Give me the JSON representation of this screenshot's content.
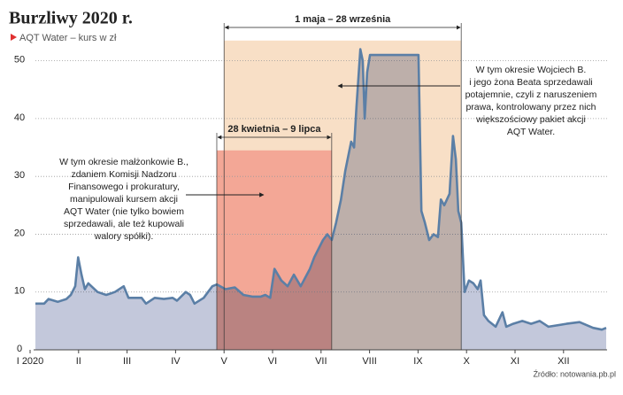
{
  "chart_data": {
    "type": "area",
    "title": "Burzliwy 2020 r.",
    "subtitle": "AQT Water – kurs w zł",
    "source": "Źródło: notowania.pb.pl",
    "xlim": [
      -0.1,
      12
    ],
    "xticks": [
      {
        "value": 0,
        "label": "I 2020"
      },
      {
        "value": 1,
        "label": "II"
      },
      {
        "value": 2,
        "label": "III"
      },
      {
        "value": 3,
        "label": "IV"
      },
      {
        "value": 4,
        "label": "V"
      },
      {
        "value": 5,
        "label": "VI"
      },
      {
        "value": 6,
        "label": "VII"
      },
      {
        "value": 7,
        "label": "VIII"
      },
      {
        "value": 8,
        "label": "IX"
      },
      {
        "value": 9,
        "label": "X"
      },
      {
        "value": 10,
        "label": "XI"
      },
      {
        "value": 11,
        "label": "XII"
      }
    ],
    "ylim": [
      0,
      55
    ],
    "yticks": [
      0,
      10,
      20,
      30,
      40,
      50
    ],
    "grid": true,
    "series": [
      {
        "name": "AQT Water",
        "color": "#5b7fa6",
        "fill": "#c3c8db",
        "x": [
          0.11,
          0.29,
          0.38,
          0.57,
          0.75,
          0.84,
          0.93,
          0.99,
          1.06,
          1.13,
          1.2,
          1.39,
          1.57,
          1.75,
          1.93,
          2.03,
          2.3,
          2.39,
          2.57,
          2.76,
          2.94,
          3.03,
          3.21,
          3.3,
          3.39,
          3.58,
          3.67,
          3.76,
          3.85,
          4.03,
          4.22,
          4.4,
          4.58,
          4.76,
          4.85,
          4.95,
          5.04,
          5.18,
          5.31,
          5.44,
          5.58,
          5.77,
          5.86,
          6.04,
          6.13,
          6.22,
          6.31,
          6.41,
          6.5,
          6.62,
          6.68,
          6.73,
          6.81,
          6.86,
          6.9,
          6.95,
          7.01,
          8.01,
          8.07,
          8.14,
          8.23,
          8.32,
          8.41,
          8.47,
          8.54,
          8.65,
          8.72,
          8.78,
          8.83,
          8.89,
          8.96,
          9.05,
          9.14,
          9.23,
          9.29,
          9.36,
          9.45,
          9.6,
          9.74,
          9.82,
          9.96,
          10.15,
          10.33,
          10.51,
          10.69,
          11.06,
          11.33,
          11.61,
          11.79,
          11.88
        ],
        "values": [
          8,
          8,
          8.8,
          8.3,
          8.8,
          9.5,
          11,
          16,
          13,
          10.5,
          11.5,
          10,
          9.5,
          10,
          11,
          9,
          9,
          8,
          9,
          8.8,
          9,
          8.5,
          10,
          9.5,
          8,
          9,
          10,
          11,
          11.3,
          10.5,
          10.8,
          9.5,
          9.2,
          9.2,
          9.5,
          9,
          14,
          12,
          11,
          13,
          11,
          14,
          16,
          19,
          20,
          19,
          22,
          26,
          31,
          36,
          35,
          42,
          52,
          50,
          40,
          48,
          51,
          51,
          24,
          22,
          19,
          20,
          19.5,
          26,
          25,
          27,
          37,
          33,
          24,
          22,
          10,
          12,
          11.5,
          10.5,
          12,
          6,
          5,
          4,
          6.5,
          4,
          4.5,
          5,
          4.5,
          5,
          4,
          4.5,
          4.8,
          3.8,
          3.5,
          3.8
        ]
      }
    ],
    "periods": [
      {
        "label": "1 maja – 28 września",
        "start": 4,
        "end": 8.89,
        "top": 53.5,
        "color": "#f8dfc6"
      },
      {
        "label": "28 kwietnia – 9 lipca",
        "start": 3.85,
        "end": 6.22,
        "top": 34.5,
        "color": "#f3a796"
      }
    ],
    "annotations": [
      {
        "lines": [
          "W tym okresie Wojciech B.",
          "i jego żona Beata sprzedawali",
          "potajemnie, czyli z naruszeniem",
          "prawa, kontrolowany przez nich",
          "większościowy pakiet akcji",
          "AQT Water."
        ]
      },
      {
        "lines": [
          "W tym okresie małżonkowie B.,",
          "zdaniem Komisji Nadzoru",
          "Finansowego i prokuratury,",
          "manipulowali kursem akcji",
          "AQT Water (nie tylko bowiem",
          "sprzedawali, ale też kupowali",
          "walory spółki)."
        ]
      }
    ]
  }
}
